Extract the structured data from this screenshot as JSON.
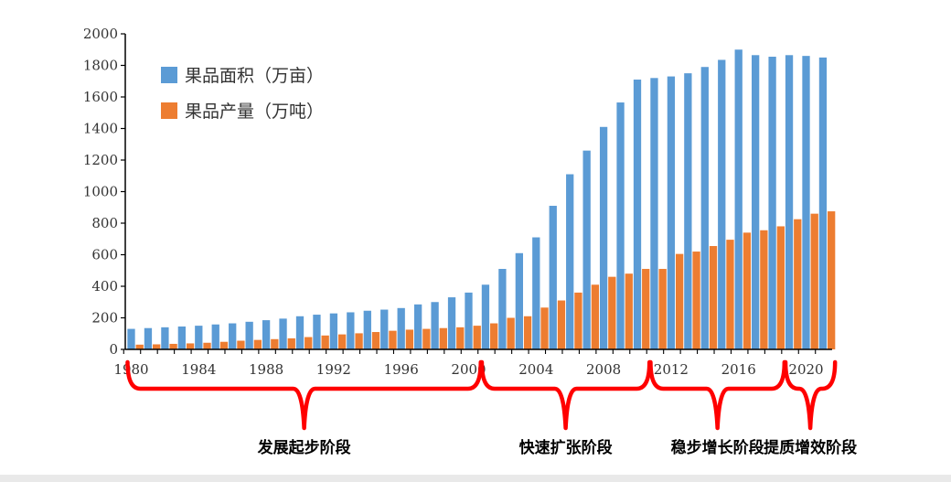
{
  "chart_data": {
    "type": "bar",
    "x": [
      1980,
      1981,
      1982,
      1983,
      1984,
      1985,
      1986,
      1987,
      1988,
      1989,
      1990,
      1991,
      1992,
      1993,
      1994,
      1995,
      1996,
      1997,
      1998,
      1999,
      2000,
      2001,
      2002,
      2003,
      2004,
      2005,
      2006,
      2007,
      2008,
      2009,
      2010,
      2011,
      2012,
      2013,
      2014,
      2015,
      2016,
      2017,
      2018,
      2019,
      2020,
      2021
    ],
    "x_tick_labels": [
      "1980",
      "1984",
      "1988",
      "1992",
      "1996",
      "2000",
      "2004",
      "2008",
      "2012",
      "2016",
      "2020"
    ],
    "x_tick_values": [
      1980,
      1984,
      1988,
      1992,
      1996,
      2000,
      2004,
      2008,
      2012,
      2016,
      2020
    ],
    "ylim": [
      0,
      2000
    ],
    "y_ticks": [
      0,
      200,
      400,
      600,
      800,
      1000,
      1200,
      1400,
      1600,
      1800,
      2000
    ],
    "grid": false,
    "legend_position": "top-left",
    "series": [
      {
        "name": "果品面积（万亩）",
        "color": "#5b9bd5",
        "values": [
          130,
          135,
          140,
          145,
          150,
          158,
          165,
          175,
          185,
          195,
          210,
          220,
          228,
          235,
          245,
          252,
          262,
          285,
          300,
          330,
          360,
          410,
          510,
          610,
          710,
          910,
          1110,
          1260,
          1410,
          1565,
          1710,
          1720,
          1730,
          1750,
          1790,
          1835,
          1900,
          1865,
          1855,
          1865,
          1860,
          1850
        ]
      },
      {
        "name": "果品产量（万吨）",
        "color": "#ed7d31",
        "values": [
          30,
          32,
          35,
          38,
          42,
          48,
          55,
          60,
          65,
          70,
          78,
          88,
          95,
          102,
          110,
          118,
          125,
          130,
          135,
          140,
          150,
          165,
          200,
          210,
          265,
          310,
          360,
          410,
          460,
          480,
          510,
          510,
          605,
          620,
          655,
          695,
          740,
          755,
          780,
          825,
          860,
          875
        ]
      }
    ],
    "annotations": [
      {
        "label": "发展起步阶段",
        "from": 1980,
        "to": 2000
      },
      {
        "label": "快速扩张阶段",
        "from": 2001,
        "to": 2010
      },
      {
        "label": "稳步增长阶段",
        "from": 2011,
        "to": 2018
      },
      {
        "label": "提质增效阶段",
        "from": 2019,
        "to": 2021
      }
    ],
    "annotation_color": "#ff0000"
  }
}
